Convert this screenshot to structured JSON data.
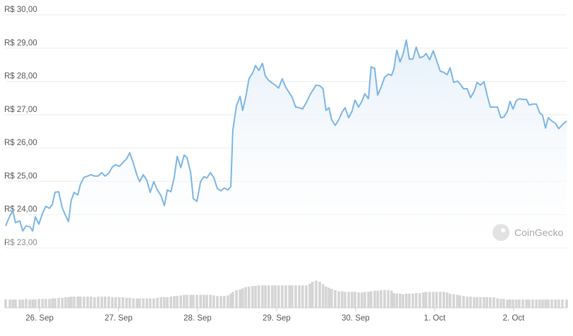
{
  "chart_data": {
    "type": "line",
    "watermark": "CoinGecko",
    "x": [
      -10.3,
      -9.0,
      -8.1,
      -7.3,
      -6.0,
      -5.1,
      -4.1,
      -3.0,
      -2.1,
      -1.3,
      -0.2,
      0.9,
      1.9,
      3.0,
      3.9,
      4.7,
      5.8,
      6.9,
      7.9,
      8.8,
      9.6,
      10.5,
      11.6,
      12.4,
      13.5,
      14.6,
      15.6,
      16.7,
      17.8,
      18.9,
      19.9,
      21.0,
      22.1,
      23.1,
      24.2,
      25.3,
      26.4,
      27.4,
      28.5,
      29.6,
      30.4,
      31.5,
      32.6,
      33.6,
      34.7,
      35.8,
      36.9,
      37.9,
      38.8,
      39.9,
      40.9,
      41.8,
      42.9,
      43.9,
      44.8,
      45.9,
      46.7,
      47.8,
      48.9,
      49.9,
      50.8,
      51.9,
      52.9,
      54.0,
      55.1,
      56.1,
      57.2,
      58.1,
      58.7,
      59.8,
      60.9,
      61.7,
      62.6,
      63.6,
      64.7,
      65.6,
      66.6,
      67.7,
      68.6,
      69.6,
      70.7,
      71.6,
      72.6,
      73.7,
      74.8,
      75.9,
      76.7,
      77.8,
      78.9,
      79.9,
      81.0,
      82.1,
      82.9,
      84.0,
      85.1,
      86.1,
      87.0,
      87.9,
      88.7,
      89.8,
      90.9,
      91.9,
      92.8,
      93.9,
      94.9,
      95.8,
      96.9,
      97.9,
      98.8,
      99.9,
      100.7,
      101.8,
      102.7,
      103.7,
      104.8,
      105.9,
      106.9,
      107.6,
      108.5,
      109.5,
      110.4,
      111.4,
      112.3,
      113.4,
      114.4,
      115.5,
      116.6,
      117.4,
      118.5,
      119.6,
      120.6,
      121.7,
      122.8,
      123.8,
      124.7,
      125.8,
      126.9,
      127.7,
      128.8,
      129.9,
      130.9,
      132.0,
      132.9,
      133.9,
      135.0,
      135.9,
      136.9,
      138.0,
      139.1,
      140.1,
      141.0,
      142.1,
      142.9,
      143.8,
      144.8,
      145.7,
      146.8,
      147.9,
      148.7,
      149.8,
      150.9,
      151.9,
      152.8,
      153.7,
      154.5,
      155.6,
      156.7,
      157.7,
      158.8,
      160.1
    ],
    "values": [
      23.66,
      23.97,
      24.1,
      23.76,
      23.81,
      23.51,
      23.66,
      23.64,
      23.51,
      23.93,
      23.72,
      24.04,
      24.25,
      24.19,
      24.31,
      24.67,
      24.69,
      24.21,
      23.97,
      23.79,
      24.42,
      24.67,
      24.59,
      24.91,
      25.12,
      25.16,
      25.2,
      25.16,
      25.16,
      25.26,
      25.16,
      25.24,
      25.43,
      25.5,
      25.45,
      25.56,
      25.67,
      25.86,
      25.54,
      25.18,
      24.99,
      25.2,
      25.03,
      24.67,
      24.99,
      24.74,
      24.57,
      24.27,
      24.74,
      24.69,
      25.12,
      25.75,
      25.41,
      25.79,
      25.71,
      25.26,
      24.48,
      24.4,
      24.99,
      25.14,
      25.1,
      25.26,
      25.12,
      24.78,
      24.72,
      24.8,
      24.74,
      24.84,
      26.53,
      27.27,
      27.55,
      27.13,
      27.51,
      28.08,
      28.25,
      28.48,
      28.33,
      28.54,
      28.16,
      28.03,
      27.95,
      27.89,
      27.8,
      28.08,
      27.82,
      27.65,
      27.53,
      27.23,
      27.21,
      27.17,
      27.36,
      27.59,
      27.72,
      27.89,
      27.87,
      27.78,
      27.13,
      27.21,
      26.85,
      26.68,
      26.85,
      27.08,
      27.21,
      26.91,
      27.1,
      27.44,
      27.23,
      27.4,
      27.63,
      27.48,
      28.44,
      28.39,
      27.59,
      27.82,
      28.12,
      28.22,
      28.18,
      28.37,
      28.94,
      28.58,
      28.82,
      29.24,
      28.67,
      28.67,
      29.03,
      28.71,
      28.75,
      28.84,
      28.65,
      28.92,
      28.63,
      28.31,
      28.27,
      28.2,
      28.41,
      27.97,
      28.01,
      27.93,
      27.78,
      27.78,
      27.51,
      27.7,
      27.97,
      27.89,
      27.99,
      27.61,
      27.23,
      27.23,
      27.23,
      26.91,
      26.93,
      27.1,
      27.4,
      27.17,
      27.42,
      27.48,
      27.46,
      27.46,
      27.29,
      27.32,
      27.32,
      27.06,
      26.98,
      26.6,
      26.91,
      26.81,
      26.74,
      26.58,
      26.7,
      26.81
    ],
    "color": "#7cb5e2",
    "volume": {
      "color": "#d4d4d4",
      "lim": [
        0,
        50
      ],
      "values": [
        14,
        14,
        14,
        14,
        14,
        14,
        15,
        14,
        14,
        14,
        15,
        15,
        15,
        15,
        16,
        16,
        17,
        17,
        18,
        18,
        19,
        19,
        19,
        19,
        19,
        19,
        19,
        18,
        19,
        19,
        19,
        19,
        18,
        18,
        18,
        18,
        17,
        17,
        16,
        16,
        16,
        16,
        16,
        16,
        16,
        17,
        18,
        18,
        18,
        19,
        20,
        20,
        21,
        22,
        22,
        22,
        22,
        22,
        22,
        22,
        22,
        22,
        21,
        20,
        20,
        20,
        21,
        24,
        27,
        30,
        31,
        33,
        35,
        36,
        37,
        37,
        38,
        38,
        38,
        38,
        38,
        38,
        38,
        38,
        38,
        38,
        38,
        38,
        38,
        38,
        38,
        41,
        44,
        46,
        44,
        40,
        36,
        34,
        32,
        30,
        28,
        28,
        27,
        27,
        27,
        27,
        26,
        26,
        27,
        27,
        28,
        29,
        29,
        30,
        30,
        30,
        29,
        25,
        24,
        24,
        23,
        24,
        24,
        24,
        25,
        25,
        26,
        27,
        27,
        27,
        27,
        27,
        27,
        26,
        24,
        23,
        22,
        21,
        20,
        19,
        19,
        18,
        18,
        18,
        18,
        18,
        18,
        18,
        16,
        15,
        15,
        14,
        14,
        14,
        14,
        14,
        14,
        14,
        14,
        14,
        14,
        14,
        14,
        14,
        14,
        14,
        14,
        14,
        14,
        14
      ]
    },
    "xlim": [
      -10.3,
      160.1
    ],
    "xticks": [
      {
        "value": 0,
        "label": "26. Sep"
      },
      {
        "value": 24,
        "label": "27. Sep"
      },
      {
        "value": 48,
        "label": "28. Sep"
      },
      {
        "value": 72,
        "label": "29. Sep"
      },
      {
        "value": 96,
        "label": "30. Sep"
      },
      {
        "value": 120,
        "label": "1. Oct"
      },
      {
        "value": 144,
        "label": "2. Oct"
      }
    ],
    "ylim": [
      23,
      30
    ],
    "yticks": [
      {
        "value": 23,
        "label": "R$ 23,00"
      },
      {
        "value": 24,
        "label": "R$ 24,00"
      },
      {
        "value": 25,
        "label": "R$ 25,00"
      },
      {
        "value": 26,
        "label": "R$ 26,00"
      },
      {
        "value": 27,
        "label": "R$ 27,00"
      },
      {
        "value": 28,
        "label": "R$ 28,00"
      },
      {
        "value": 29,
        "label": "R$ 29,00"
      },
      {
        "value": 30,
        "label": "R$ 30,00"
      }
    ],
    "grid": true
  }
}
